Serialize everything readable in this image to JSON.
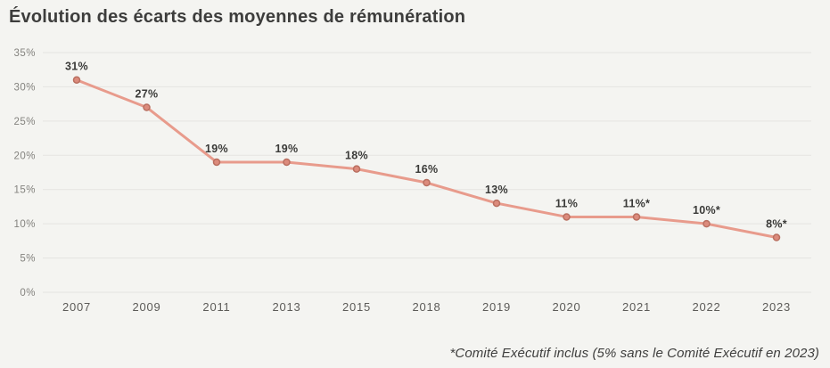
{
  "chart_data": {
    "type": "line",
    "title": "Évolution des écarts des moyennes de rémunération",
    "categories": [
      "2007",
      "2009",
      "2011",
      "2013",
      "2015",
      "2018",
      "2019",
      "2020",
      "2021",
      "2022",
      "2023"
    ],
    "values": [
      31,
      27,
      19,
      19,
      18,
      16,
      13,
      11,
      11,
      10,
      8
    ],
    "point_labels": [
      "31%",
      "27%",
      "19%",
      "19%",
      "18%",
      "16%",
      "13%",
      "11%",
      "11%*",
      "10%*",
      "8%*"
    ],
    "ytick_values": [
      0,
      5,
      10,
      15,
      20,
      25,
      30,
      35
    ],
    "ytick_labels": [
      "0%",
      "5%",
      "10%",
      "15%",
      "20%",
      "25%",
      "30%",
      "35%"
    ],
    "ylim": [
      0,
      35
    ],
    "xlabel": "",
    "ylabel": "",
    "grid": "horizontal",
    "legend": "none",
    "footnote": "*Comité Exécutif inclus (5% sans le Comité Exécutif en 2023)"
  },
  "colors": {
    "background": "#f4f4f1",
    "grid": "#e5e4e1",
    "accent_line": "#e89b8c",
    "marker_fill": "#dc8b7c",
    "marker_stroke": "#b96f60",
    "title_text": "#3d3d3c",
    "y_axis_text": "#84837f",
    "x_axis_text": "#5c5b58",
    "data_label_text": "#3a3a38",
    "footnote_text": "#3f3f3e"
  }
}
